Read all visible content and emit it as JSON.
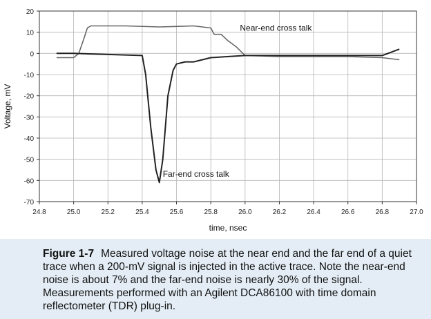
{
  "chart_data": {
    "type": "line",
    "title": "",
    "xlabel": "time, nsec",
    "ylabel": "Voltage, mV",
    "xlim": [
      24.8,
      27.0
    ],
    "ylim": [
      -70,
      20
    ],
    "xticks": [
      "24.8",
      "25.0",
      "25.2",
      "25.4",
      "25.6",
      "25.8",
      "26.0",
      "26.2",
      "26.4",
      "26.6",
      "26.8",
      "27.0"
    ],
    "yticks": [
      "20",
      "10",
      "0",
      "-10",
      "-20",
      "-30",
      "-40",
      "-50",
      "-60",
      "-70"
    ],
    "grid": true,
    "series": [
      {
        "name": "Near-end cross talk",
        "x": [
          24.9,
          25.0,
          25.03,
          25.06,
          25.08,
          25.1,
          25.15,
          25.3,
          25.5,
          25.7,
          25.8,
          25.82,
          25.86,
          25.9,
          25.95,
          26.0,
          26.2,
          26.4,
          26.6,
          26.8,
          26.9
        ],
        "values": [
          -2,
          -2,
          0,
          7,
          12,
          13,
          13,
          13,
          12.5,
          13,
          12,
          9,
          9,
          6,
          3,
          -1,
          -1.5,
          -1.5,
          -1.5,
          -2,
          -3
        ]
      },
      {
        "name": "Far-end cross talk",
        "x": [
          24.9,
          25.0,
          25.2,
          25.4,
          25.42,
          25.45,
          25.48,
          25.5,
          25.52,
          25.55,
          25.58,
          25.6,
          25.65,
          25.7,
          25.8,
          26.0,
          26.2,
          26.4,
          26.6,
          26.8,
          26.9
        ],
        "values": [
          0,
          0,
          -0.5,
          -1,
          -10,
          -35,
          -55,
          -61,
          -50,
          -20,
          -8,
          -5,
          -4,
          -4,
          -2,
          -1,
          -1,
          -1,
          -1,
          -1,
          2
        ]
      }
    ],
    "annotations": [
      {
        "text": "Near-end cross talk",
        "x": 25.97,
        "y": 12
      },
      {
        "text": "Far-end cross talk",
        "x": 25.52,
        "y": -57
      }
    ],
    "colors": {
      "near": "#666666",
      "far": "#222222"
    }
  },
  "caption": {
    "label": "Figure 1-7",
    "text": "Measured voltage noise at the near end and the far end of a quiet trace when a 200-mV signal is injected in the active trace. Note the near-end noise is about 7% and the far-end noise is nearly 30% of the signal. Measurements performed with an Agilent DCA86100 with time domain reflectometer (TDR) plug-in."
  }
}
